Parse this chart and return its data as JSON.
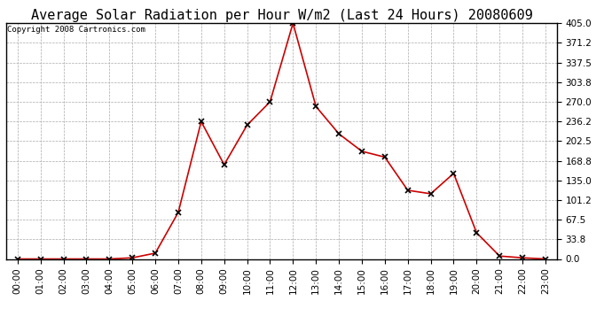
{
  "title": "Average Solar Radiation per Hour W/m2 (Last 24 Hours) 20080609",
  "copyright_text": "Copyright 2008 Cartronics.com",
  "hours": [
    "00:00",
    "01:00",
    "02:00",
    "03:00",
    "04:00",
    "05:00",
    "06:00",
    "07:00",
    "08:00",
    "09:00",
    "10:00",
    "11:00",
    "12:00",
    "13:00",
    "14:00",
    "15:00",
    "16:00",
    "17:00",
    "18:00",
    "19:00",
    "20:00",
    "21:00",
    "22:00",
    "23:00"
  ],
  "values": [
    0.0,
    0.0,
    0.0,
    0.0,
    0.0,
    2.0,
    10.0,
    80.0,
    236.0,
    162.0,
    230.0,
    270.0,
    405.0,
    262.0,
    215.0,
    185.0,
    175.0,
    118.0,
    112.0,
    147.0,
    45.0,
    5.0,
    2.0,
    0.0
  ],
  "line_color": "#cc0000",
  "marker": "x",
  "marker_color": "#000000",
  "bg_color": "#ffffff",
  "outer_bg_color": "#ffffff",
  "grid_color": "#aaaaaa",
  "border_color": "#000000",
  "title_fontsize": 11,
  "copyright_fontsize": 6.5,
  "tick_fontsize": 7.5,
  "ymin": 0.0,
  "ymax": 405.0,
  "yticks": [
    0.0,
    33.8,
    67.5,
    101.2,
    135.0,
    168.8,
    202.5,
    236.2,
    270.0,
    303.8,
    337.5,
    371.2,
    405.0
  ]
}
